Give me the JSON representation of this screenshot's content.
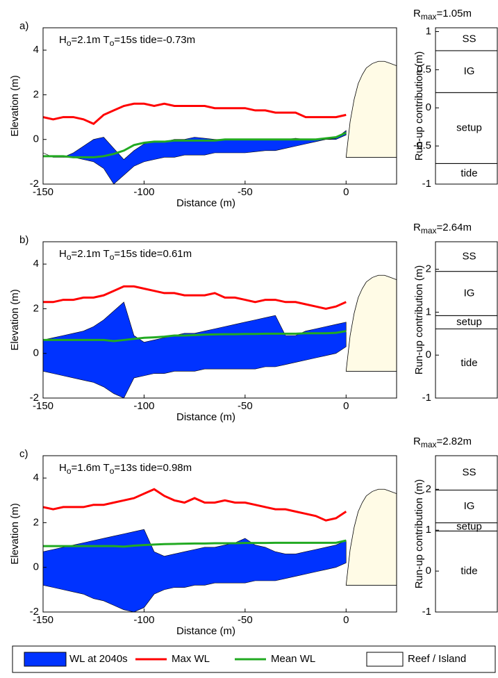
{
  "chart_data": [
    {
      "type": "line",
      "panel_label": "a)",
      "annotation": [
        "H",
        "o",
        "=2.1m T",
        "o",
        "=15s tide=-0.73m"
      ],
      "xlabel": "Distance (m)",
      "ylabel": "Elevation (m)",
      "xlim": [
        -150,
        25
      ],
      "ylim": [
        -2,
        5
      ],
      "xticks": [
        -150,
        -100,
        -50,
        0
      ],
      "yticks": [
        -2,
        0,
        2,
        4
      ],
      "x": [
        -150,
        -145,
        -140,
        -135,
        -130,
        -125,
        -120,
        -115,
        -110,
        -105,
        -100,
        -95,
        -90,
        -85,
        -80,
        -75,
        -70,
        -65,
        -60,
        -55,
        -50,
        -45,
        -40,
        -35,
        -30,
        -25,
        -20,
        -15,
        -10,
        -5,
        0
      ],
      "series": [
        {
          "name": "WL at 2040s",
          "color": "#0033ff",
          "values": [
            -0.6,
            -0.8,
            -0.8,
            -0.6,
            -0.3,
            0,
            0.1,
            -0.4,
            -0.9,
            -0.5,
            -0.2,
            -0.1,
            -0.1,
            0,
            0,
            0.1,
            0.05,
            0,
            0,
            0,
            0,
            0,
            0,
            0,
            0,
            0.05,
            0,
            0,
            0,
            0.05,
            0.4
          ],
          "lower": [
            -0.6,
            -0.8,
            -0.8,
            -0.8,
            -0.9,
            -1.0,
            -1.3,
            -2.0,
            -1.6,
            -1.2,
            -1.0,
            -0.9,
            -0.8,
            -0.8,
            -0.7,
            -0.7,
            -0.7,
            -0.6,
            -0.6,
            -0.6,
            -0.6,
            -0.55,
            -0.5,
            -0.5,
            -0.4,
            -0.3,
            -0.2,
            -0.1,
            0,
            0,
            0.2
          ]
        },
        {
          "name": "Max WL",
          "color": "#ff0000",
          "values": [
            1.0,
            0.9,
            1.0,
            1.0,
            0.9,
            0.7,
            1.1,
            1.3,
            1.5,
            1.6,
            1.6,
            1.5,
            1.6,
            1.5,
            1.5,
            1.5,
            1.5,
            1.4,
            1.4,
            1.4,
            1.4,
            1.3,
            1.3,
            1.2,
            1.2,
            1.2,
            1.0,
            1.0,
            1.0,
            1.0,
            1.1
          ]
        },
        {
          "name": "Mean WL",
          "color": "#22aa22",
          "values": [
            -0.75,
            -0.75,
            -0.75,
            -0.8,
            -0.8,
            -0.8,
            -0.75,
            -0.65,
            -0.5,
            -0.25,
            -0.15,
            -0.1,
            -0.1,
            -0.05,
            -0.05,
            -0.05,
            -0.05,
            -0.05,
            0,
            0,
            0,
            0,
            0,
            0,
            0,
            0,
            0,
            0,
            0.05,
            0.1,
            0.3
          ]
        }
      ],
      "island": {
        "name": "Reef / Island",
        "color": "#fffbe6",
        "x": [
          0,
          2,
          4,
          6,
          8,
          10,
          13,
          16,
          19,
          22,
          25
        ],
        "values": [
          -0.8,
          0.8,
          1.8,
          2.5,
          2.9,
          3.2,
          3.4,
          3.5,
          3.5,
          3.4,
          3.3
        ]
      }
    },
    {
      "type": "bar",
      "title": [
        "R",
        "max",
        "=1.05m"
      ],
      "ylabel": "Run-up contribution (m)",
      "ylim": [
        -1,
        1.05
      ],
      "yticks": [
        -1,
        -0.5,
        0,
        0.5,
        1
      ],
      "series": [
        {
          "name": "tide",
          "values": [
            -0.73
          ]
        },
        {
          "name": "setup",
          "values": [
            0.93
          ]
        },
        {
          "name": "IG",
          "values": [
            0.55
          ]
        },
        {
          "name": "SS",
          "values": [
            0.3
          ]
        }
      ]
    },
    {
      "type": "line",
      "panel_label": "b)",
      "annotation": [
        "H",
        "o",
        "=2.1m T",
        "o",
        "=15s tide=0.61m"
      ],
      "xlabel": "Distance (m)",
      "ylabel": "Elevation (m)",
      "xlim": [
        -150,
        25
      ],
      "ylim": [
        -2,
        5
      ],
      "xticks": [
        -150,
        -100,
        -50,
        0
      ],
      "yticks": [
        -2,
        0,
        2,
        4
      ],
      "x": [
        -150,
        -145,
        -140,
        -135,
        -130,
        -125,
        -120,
        -115,
        -110,
        -105,
        -100,
        -95,
        -90,
        -85,
        -80,
        -75,
        -70,
        -65,
        -60,
        -55,
        -50,
        -45,
        -40,
        -35,
        -30,
        -25,
        -20,
        -15,
        -10,
        -5,
        0
      ],
      "series": [
        {
          "name": "WL at 2040s",
          "color": "#0033ff",
          "values": [
            0.6,
            0.7,
            0.8,
            0.9,
            1.0,
            1.2,
            1.5,
            1.9,
            2.3,
            0.8,
            0.5,
            0.6,
            0.7,
            0.8,
            0.9,
            0.9,
            1.0,
            1.1,
            1.2,
            1.3,
            1.4,
            1.5,
            1.6,
            1.7,
            0.8,
            0.8,
            1.0,
            1.1,
            1.2,
            1.3,
            1.4
          ],
          "lower": [
            -0.8,
            -0.9,
            -1.0,
            -1.1,
            -1.2,
            -1.3,
            -1.5,
            -1.8,
            -2.0,
            -1.1,
            -1.0,
            -0.9,
            -0.9,
            -0.8,
            -0.8,
            -0.8,
            -0.7,
            -0.7,
            -0.7,
            -0.7,
            -0.7,
            -0.7,
            -0.6,
            -0.6,
            -0.5,
            -0.4,
            -0.3,
            -0.2,
            -0.1,
            0,
            0.3
          ]
        },
        {
          "name": "Max WL",
          "color": "#ff0000",
          "values": [
            2.3,
            2.3,
            2.4,
            2.4,
            2.5,
            2.5,
            2.6,
            2.8,
            3.0,
            3.0,
            2.9,
            2.8,
            2.7,
            2.7,
            2.6,
            2.6,
            2.6,
            2.7,
            2.5,
            2.5,
            2.4,
            2.3,
            2.4,
            2.4,
            2.3,
            2.3,
            2.2,
            2.1,
            2.0,
            2.1,
            2.3
          ]
        },
        {
          "name": "Mean WL",
          "color": "#22aa22",
          "values": [
            0.6,
            0.6,
            0.6,
            0.6,
            0.6,
            0.6,
            0.6,
            0.55,
            0.6,
            0.65,
            0.7,
            0.72,
            0.75,
            0.8,
            0.8,
            0.82,
            0.84,
            0.85,
            0.86,
            0.86,
            0.87,
            0.87,
            0.88,
            0.88,
            0.88,
            0.88,
            0.9,
            0.9,
            0.9,
            0.92,
            1.0
          ]
        }
      ],
      "island": {
        "name": "Reef / Island",
        "color": "#fffbe6",
        "x": [
          0,
          2,
          4,
          6,
          8,
          10,
          13,
          16,
          19,
          22,
          25
        ],
        "values": [
          -0.8,
          0.8,
          1.8,
          2.5,
          2.9,
          3.2,
          3.4,
          3.5,
          3.5,
          3.4,
          3.3
        ]
      }
    },
    {
      "type": "bar",
      "title": [
        "R",
        "max",
        "=2.64m"
      ],
      "ylabel": "Run-up contribution (m)",
      "ylim": [
        -1,
        2.64
      ],
      "yticks": [
        -1,
        0,
        1,
        2
      ],
      "series": [
        {
          "name": "tide",
          "values": [
            0.61
          ]
        },
        {
          "name": "setup",
          "values": [
            0.31
          ]
        },
        {
          "name": "IG",
          "values": [
            1.03
          ]
        },
        {
          "name": "SS",
          "values": [
            0.69
          ]
        }
      ]
    },
    {
      "type": "line",
      "panel_label": "c)",
      "annotation": [
        "H",
        "o",
        "=1.6m T",
        "o",
        "=13s tide=0.98m"
      ],
      "xlabel": "Distance (m)",
      "ylabel": "Elevation (m)",
      "xlim": [
        -150,
        25
      ],
      "ylim": [
        -2,
        5
      ],
      "xticks": [
        -150,
        -100,
        -50,
        0
      ],
      "yticks": [
        -2,
        0,
        2,
        4
      ],
      "x": [
        -150,
        -145,
        -140,
        -135,
        -130,
        -125,
        -120,
        -115,
        -110,
        -105,
        -100,
        -95,
        -90,
        -85,
        -80,
        -75,
        -70,
        -65,
        -60,
        -55,
        -50,
        -45,
        -40,
        -35,
        -30,
        -25,
        -20,
        -15,
        -10,
        -5,
        0
      ],
      "series": [
        {
          "name": "WL at 2040s",
          "color": "#0033ff",
          "values": [
            0.7,
            0.8,
            0.9,
            1.0,
            1.1,
            1.2,
            1.3,
            1.4,
            1.5,
            1.6,
            1.7,
            0.7,
            0.5,
            0.6,
            0.7,
            0.8,
            0.9,
            0.9,
            1.0,
            1.1,
            1.3,
            1.0,
            0.9,
            0.7,
            0.6,
            0.6,
            0.7,
            0.8,
            0.9,
            1.0,
            1.2
          ],
          "lower": [
            -0.8,
            -0.9,
            -1.0,
            -1.1,
            -1.2,
            -1.4,
            -1.5,
            -1.7,
            -1.9,
            -2.0,
            -1.8,
            -1.2,
            -1.0,
            -0.9,
            -0.9,
            -0.8,
            -0.8,
            -0.7,
            -0.7,
            -0.7,
            -0.7,
            -0.6,
            -0.6,
            -0.6,
            -0.5,
            -0.4,
            -0.3,
            -0.2,
            -0.1,
            0,
            0.2
          ]
        },
        {
          "name": "Max WL",
          "color": "#ff0000",
          "values": [
            2.7,
            2.6,
            2.7,
            2.7,
            2.7,
            2.8,
            2.8,
            2.9,
            3.0,
            3.1,
            3.3,
            3.5,
            3.2,
            3.0,
            2.9,
            3.1,
            2.9,
            2.9,
            3.0,
            2.9,
            2.9,
            2.8,
            2.7,
            2.6,
            2.6,
            2.5,
            2.4,
            2.3,
            2.1,
            2.2,
            2.5
          ]
        },
        {
          "name": "Mean WL",
          "color": "#22aa22",
          "values": [
            0.95,
            0.95,
            0.95,
            0.95,
            0.95,
            0.95,
            0.95,
            0.95,
            0.93,
            0.97,
            1.0,
            1.02,
            1.04,
            1.05,
            1.06,
            1.07,
            1.07,
            1.08,
            1.08,
            1.08,
            1.09,
            1.09,
            1.09,
            1.1,
            1.1,
            1.1,
            1.1,
            1.1,
            1.1,
            1.1,
            1.2
          ]
        }
      ],
      "island": {
        "name": "Reef / Island",
        "color": "#fffbe6",
        "x": [
          0,
          2,
          4,
          6,
          8,
          10,
          13,
          16,
          19,
          22,
          25
        ],
        "values": [
          -0.8,
          0.8,
          1.8,
          2.5,
          2.9,
          3.2,
          3.4,
          3.5,
          3.5,
          3.4,
          3.3
        ]
      }
    },
    {
      "type": "bar",
      "title": [
        "R",
        "max",
        "=2.82m"
      ],
      "ylabel": "Run-up contribution (m)",
      "ylim": [
        -1,
        2.82
      ],
      "yticks": [
        -1,
        0,
        1,
        2
      ],
      "series": [
        {
          "name": "tide",
          "values": [
            0.98
          ]
        },
        {
          "name": "setup",
          "values": [
            0.2
          ]
        },
        {
          "name": "IG",
          "values": [
            0.8
          ]
        },
        {
          "name": "SS",
          "values": [
            0.84
          ]
        }
      ]
    }
  ]
}
